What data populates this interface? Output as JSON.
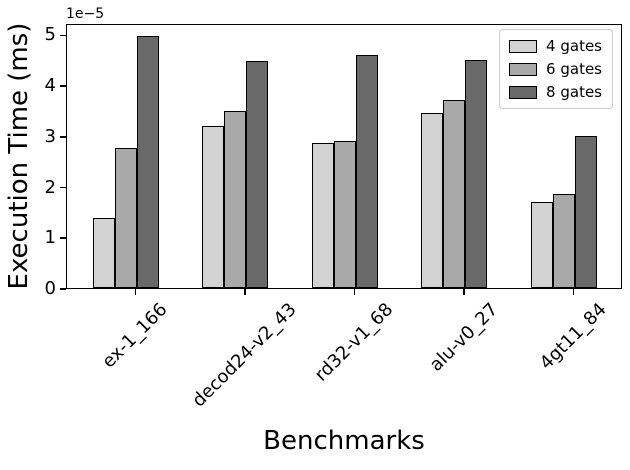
{
  "chart_data": {
    "type": "bar",
    "title": "",
    "xlabel": "Benchmarks",
    "ylabel": "Execution Time (ms)",
    "y_offset_label": "1e−5",
    "values_scale": "1e-5",
    "categories": [
      "ex-1_166",
      "decod24-v2_43",
      "rd32-v1_68",
      "alu-v0_27",
      "4gt11_84"
    ],
    "series": [
      {
        "name": "4 gates",
        "color": "#d3d3d3",
        "values": [
          1.38,
          3.2,
          2.85,
          3.45,
          1.7
        ]
      },
      {
        "name": "6 gates",
        "color": "#a9a9a9",
        "values": [
          2.77,
          3.5,
          2.9,
          3.7,
          1.85
        ]
      },
      {
        "name": "8 gates",
        "color": "#696969",
        "values": [
          4.97,
          4.47,
          4.6,
          4.5,
          3.0
        ]
      }
    ],
    "yticks": [
      0,
      1,
      2,
      3,
      4,
      5
    ],
    "ylim": [
      0,
      5.225
    ],
    "grid": false,
    "bar_edge_color": "#000000",
    "legend_position": "upper right"
  }
}
